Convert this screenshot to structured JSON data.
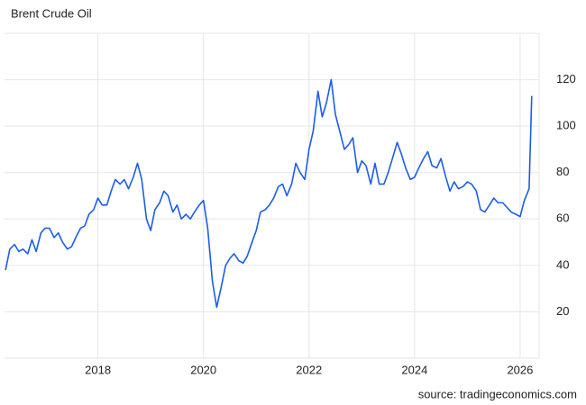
{
  "chart_data": {
    "type": "line",
    "title": "Brent Crude Oil",
    "source": "source: tradingeconomics.com",
    "x": [
      2016.25,
      2016.33,
      2016.42,
      2016.5,
      2016.58,
      2016.67,
      2016.75,
      2016.83,
      2016.92,
      2017.0,
      2017.08,
      2017.17,
      2017.25,
      2017.33,
      2017.42,
      2017.5,
      2017.58,
      2017.67,
      2017.75,
      2017.83,
      2017.92,
      2018.0,
      2018.08,
      2018.17,
      2018.25,
      2018.33,
      2018.42,
      2018.5,
      2018.58,
      2018.67,
      2018.75,
      2018.83,
      2018.92,
      2019.0,
      2019.08,
      2019.17,
      2019.25,
      2019.33,
      2019.42,
      2019.5,
      2019.58,
      2019.67,
      2019.75,
      2019.83,
      2019.92,
      2020.0,
      2020.08,
      2020.17,
      2020.25,
      2020.33,
      2020.42,
      2020.5,
      2020.58,
      2020.67,
      2020.75,
      2020.83,
      2020.92,
      2021.0,
      2021.08,
      2021.17,
      2021.25,
      2021.33,
      2021.42,
      2021.5,
      2021.58,
      2021.67,
      2021.75,
      2021.83,
      2021.92,
      2022.0,
      2022.08,
      2022.17,
      2022.25,
      2022.33,
      2022.42,
      2022.5,
      2022.58,
      2022.67,
      2022.75,
      2022.83,
      2022.92,
      2023.0,
      2023.08,
      2023.17,
      2023.25,
      2023.33,
      2023.42,
      2023.5,
      2023.58,
      2023.67,
      2023.75,
      2023.83,
      2023.92,
      2024.0,
      2024.08,
      2024.17,
      2024.25,
      2024.33,
      2024.42,
      2024.5,
      2024.58,
      2024.67,
      2024.75,
      2024.83,
      2024.92,
      2025.0,
      2025.08,
      2025.17,
      2025.25,
      2025.33,
      2025.42,
      2025.5,
      2025.58,
      2025.67,
      2025.75,
      2025.83,
      2025.92,
      2026.0,
      2026.08,
      2026.17,
      2026.22
    ],
    "series": [
      {
        "name": "Brent",
        "color": "#1a5ee8",
        "values": [
          38,
          47,
          49,
          46,
          47,
          45,
          51,
          46,
          54,
          56,
          56,
          52,
          54,
          50,
          47,
          48,
          52,
          56,
          57,
          62,
          64,
          69,
          66,
          66,
          72,
          77,
          75,
          77,
          73,
          78,
          84,
          77,
          60,
          55,
          64,
          67,
          72,
          70,
          63,
          66,
          60,
          62,
          60,
          63,
          66,
          68,
          56,
          33,
          22,
          30,
          40,
          43,
          45,
          42,
          41,
          44,
          50,
          55,
          63,
          64,
          66,
          69,
          74,
          75,
          70,
          75,
          84,
          80,
          77,
          90,
          98,
          115,
          104,
          110,
          120,
          105,
          98,
          90,
          92,
          95,
          80,
          85,
          83,
          75,
          84,
          75,
          75,
          80,
          86,
          93,
          88,
          82,
          77,
          78,
          82,
          86,
          89,
          83,
          82,
          86,
          79,
          72,
          76,
          73,
          74,
          76,
          75,
          72,
          64,
          63,
          66,
          69,
          67,
          67,
          65,
          63,
          62,
          61,
          68,
          73,
          113
        ]
      }
    ],
    "xlim": [
      2016.23,
      2026.36
    ],
    "xticks": [
      2018,
      2020,
      2022,
      2024,
      2026
    ],
    "ylim": [
      0,
      140
    ],
    "yticks": [
      20,
      40,
      60,
      80,
      100,
      120
    ],
    "grid": true
  }
}
